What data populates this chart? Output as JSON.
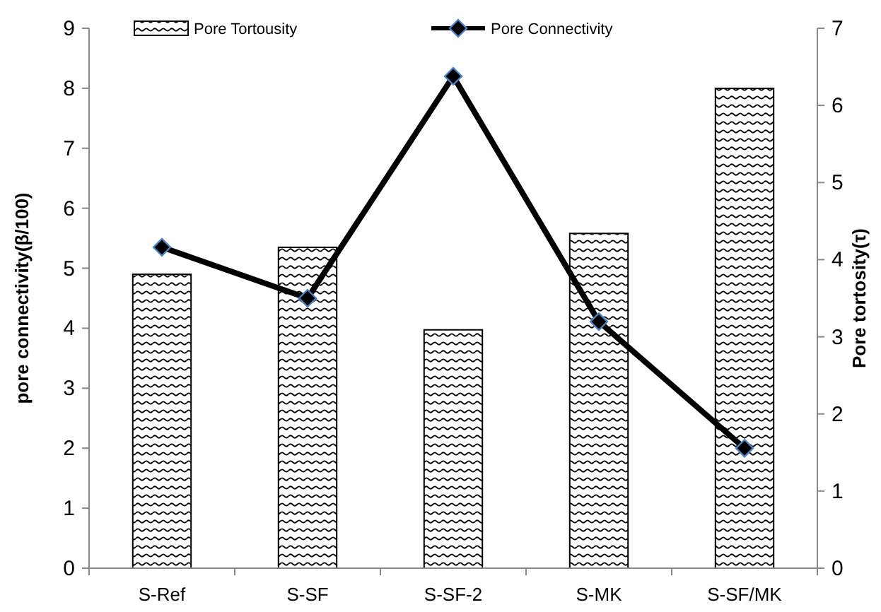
{
  "chart_data": {
    "type": "bar",
    "categories": [
      "S-Ref",
      "S-SF",
      "S-SF-2",
      "S-MK",
      "S-SF/MK"
    ],
    "ylabel": "pore connectivity(β/100)",
    "y2label": "Pore tortosity(τ)",
    "ylim": [
      0,
      9
    ],
    "yticks": [
      0,
      1,
      2,
      3,
      4,
      5,
      6,
      7,
      8,
      9
    ],
    "y2lim": [
      0,
      7
    ],
    "y2ticks": [
      0,
      1,
      2,
      3,
      4,
      5,
      6,
      7
    ],
    "series": [
      {
        "name": "Pore Tortousity",
        "axis": "y2",
        "color": "#000000",
        "values": [
          3.81,
          4.16,
          3.09,
          4.34,
          6.22
        ]
      },
      {
        "name": "Pore Connectivity",
        "type": "line",
        "axis": "y",
        "color": "#000000",
        "values": [
          5.35,
          4.5,
          8.2,
          4.11,
          2.0
        ]
      }
    ],
    "marker": "diamond",
    "line_style": "solid",
    "legend": "top",
    "grid": false
  }
}
